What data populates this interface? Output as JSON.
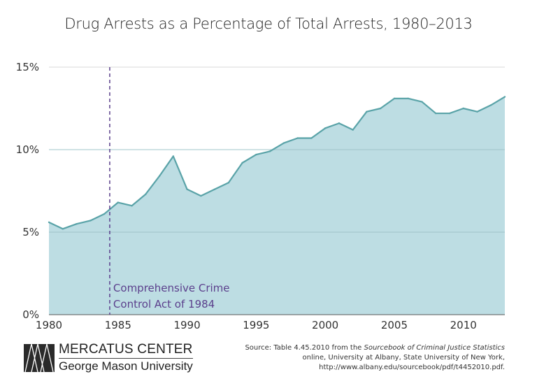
{
  "chart_data": {
    "type": "area",
    "title": "Drug Arrests as a Percentage of Total Arrests, 1980–2013",
    "xlabel": "",
    "ylabel": "",
    "x": [
      1980,
      1981,
      1982,
      1983,
      1984,
      1985,
      1986,
      1987,
      1988,
      1989,
      1990,
      1991,
      1992,
      1993,
      1994,
      1995,
      1996,
      1997,
      1998,
      1999,
      2000,
      2001,
      2002,
      2003,
      2004,
      2005,
      2006,
      2007,
      2008,
      2009,
      2010,
      2011,
      2012,
      2013
    ],
    "values": [
      5.6,
      5.2,
      5.5,
      5.7,
      6.1,
      6.8,
      6.6,
      7.3,
      8.4,
      9.6,
      7.6,
      7.2,
      7.6,
      8.0,
      9.2,
      9.7,
      9.9,
      10.4,
      10.7,
      10.7,
      11.3,
      11.6,
      11.2,
      12.3,
      12.5,
      13.1,
      13.1,
      12.9,
      12.2,
      12.2,
      12.5,
      12.3,
      12.7,
      13.2
    ],
    "xlim": [
      1980,
      2013
    ],
    "ylim": [
      0,
      15
    ],
    "x_ticks": [
      1980,
      1985,
      1990,
      1995,
      2000,
      2005,
      2010
    ],
    "x_tick_labels": [
      "1980",
      "1985",
      "1990",
      "1995",
      "2000",
      "2005",
      "2010"
    ],
    "y_ticks": [
      0,
      5,
      10,
      15
    ],
    "y_tick_labels": [
      "0%",
      "5%",
      "10%",
      "15%"
    ],
    "grid": true,
    "line_color": "#5aa3a8",
    "fill_color": "#bddde3",
    "annotation": {
      "x": 1984.4,
      "lines": [
        "Comprehensive Crime",
        "Control Act of 1984"
      ],
      "color": "#5b3f8c",
      "style": "dashed"
    }
  },
  "footer": {
    "logo_line1": "MERCATUS CENTER",
    "logo_line2": "George Mason University",
    "source_prefix": "Source: Table 4.45.2010 from the ",
    "source_italic": "Sourcebook of Criminal Justice Statistics",
    "source_line2": "online, University at Albany, State University of New York,",
    "source_line3": "http://www.albany.edu/sourcebook/pdf/t4452010.pdf."
  }
}
